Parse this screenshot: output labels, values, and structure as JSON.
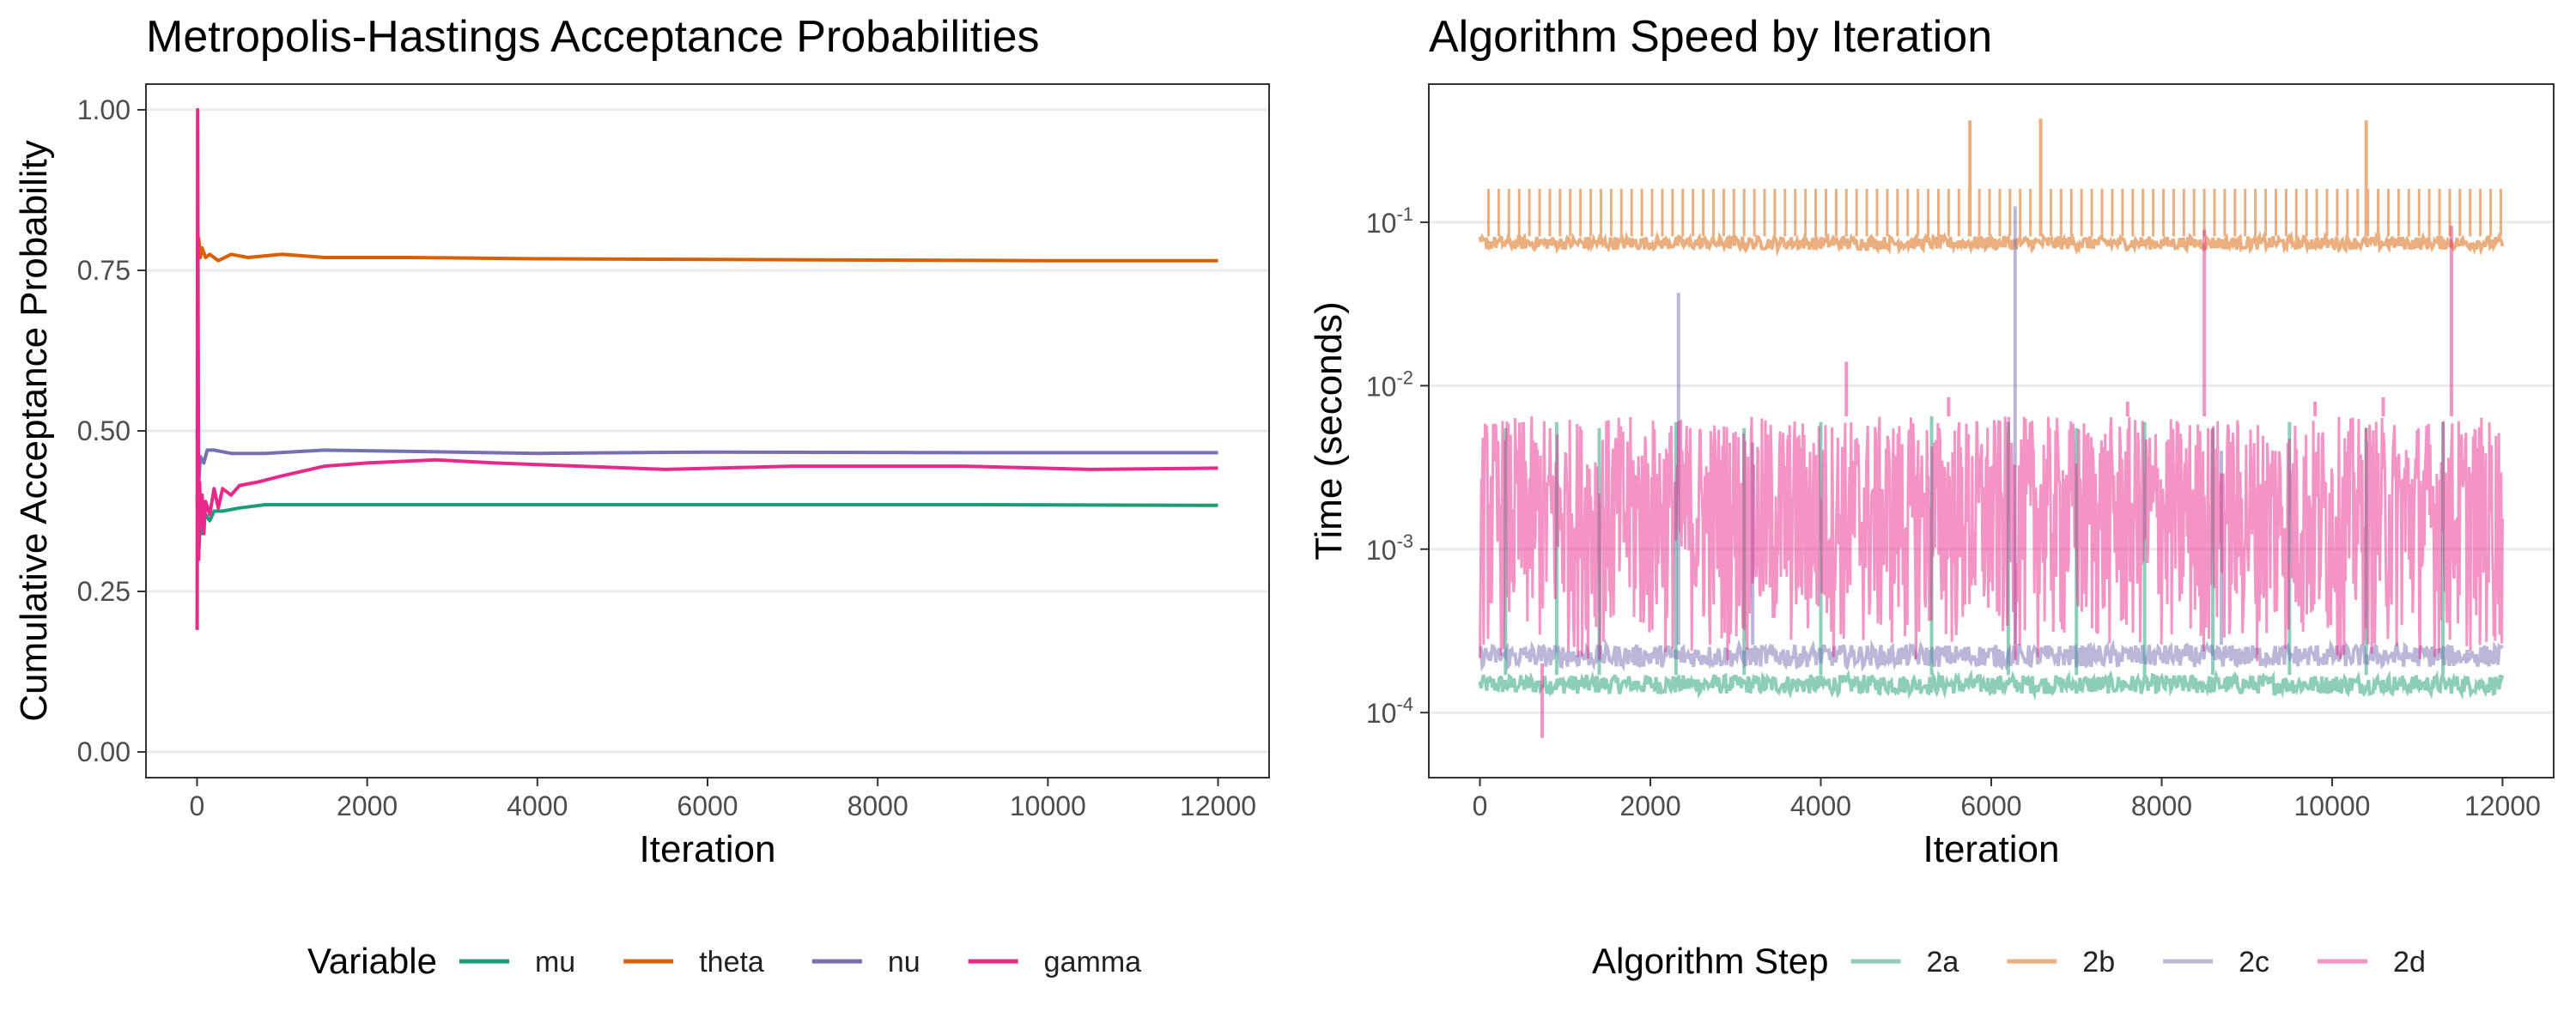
{
  "chart_data": [
    {
      "type": "line",
      "title": "Metropolis-Hastings Acceptance Probabilities",
      "xlabel": "Iteration",
      "ylabel": "Cumulative Acceptance Probability",
      "xlim": [
        -600,
        12600
      ],
      "ylim": [
        -0.04,
        1.04
      ],
      "x_ticks": [
        0,
        2000,
        4000,
        6000,
        8000,
        10000,
        12000
      ],
      "x_tick_labels": [
        "0",
        "2000",
        "4000",
        "6000",
        "8000",
        "10000",
        "12000"
      ],
      "y_ticks": [
        0.0,
        0.25,
        0.5,
        0.75,
        1.0
      ],
      "y_tick_labels": [
        "0.00",
        "0.25",
        "0.50",
        "0.75",
        "1.00"
      ],
      "grid": true,
      "legend_title": "Variable",
      "legend_position": "bottom",
      "series": [
        {
          "name": "mu",
          "color": "#1b9e77",
          "points": [
            [
              1,
              0.4
            ],
            [
              20,
              0.31
            ],
            [
              40,
              0.36
            ],
            [
              60,
              0.34
            ],
            [
              100,
              0.37
            ],
            [
              150,
              0.36
            ],
            [
              200,
              0.375
            ],
            [
              300,
              0.375
            ],
            [
              500,
              0.38
            ],
            [
              800,
              0.385
            ],
            [
              1500,
              0.385
            ],
            [
              3000,
              0.385
            ],
            [
              6000,
              0.385
            ],
            [
              9000,
              0.385
            ],
            [
              12000,
              0.384
            ]
          ]
        },
        {
          "name": "theta",
          "color": "#d95f02",
          "points": [
            [
              1,
              0.79
            ],
            [
              20,
              0.8
            ],
            [
              40,
              0.77
            ],
            [
              60,
              0.785
            ],
            [
              100,
              0.77
            ],
            [
              150,
              0.775
            ],
            [
              250,
              0.765
            ],
            [
              400,
              0.775
            ],
            [
              600,
              0.77
            ],
            [
              1000,
              0.775
            ],
            [
              1500,
              0.77
            ],
            [
              2500,
              0.77
            ],
            [
              4000,
              0.768
            ],
            [
              6000,
              0.767
            ],
            [
              8000,
              0.766
            ],
            [
              10000,
              0.765
            ],
            [
              12000,
              0.765
            ]
          ]
        },
        {
          "name": "nu",
          "color": "#7570b3",
          "points": [
            [
              1,
              0.5
            ],
            [
              20,
              0.42
            ],
            [
              40,
              0.46
            ],
            [
              80,
              0.45
            ],
            [
              120,
              0.47
            ],
            [
              200,
              0.47
            ],
            [
              400,
              0.465
            ],
            [
              800,
              0.465
            ],
            [
              1500,
              0.47
            ],
            [
              2500,
              0.468
            ],
            [
              4000,
              0.465
            ],
            [
              6000,
              0.467
            ],
            [
              9000,
              0.466
            ],
            [
              12000,
              0.466
            ]
          ]
        },
        {
          "name": "gamma",
          "color": "#e7298a",
          "points": [
            [
              1,
              0.19
            ],
            [
              8,
              1.0
            ],
            [
              14,
              0.65
            ],
            [
              20,
              0.3
            ],
            [
              30,
              0.42
            ],
            [
              45,
              0.35
            ],
            [
              60,
              0.4
            ],
            [
              80,
              0.34
            ],
            [
              100,
              0.39
            ],
            [
              150,
              0.37
            ],
            [
              200,
              0.41
            ],
            [
              250,
              0.38
            ],
            [
              300,
              0.41
            ],
            [
              400,
              0.4
            ],
            [
              500,
              0.415
            ],
            [
              700,
              0.42
            ],
            [
              1000,
              0.43
            ],
            [
              1500,
              0.445
            ],
            [
              2000,
              0.45
            ],
            [
              2800,
              0.455
            ],
            [
              3500,
              0.45
            ],
            [
              4500,
              0.445
            ],
            [
              5500,
              0.44
            ],
            [
              7000,
              0.445
            ],
            [
              9000,
              0.445
            ],
            [
              10500,
              0.44
            ],
            [
              12000,
              0.442
            ]
          ]
        }
      ]
    },
    {
      "type": "line",
      "title": "Algorithm Speed by Iteration",
      "xlabel": "Iteration",
      "ylabel": "Time (seconds)",
      "y_scale": "log10",
      "xlim": [
        -600,
        12600
      ],
      "ylim": [
        4e-05,
        0.7
      ],
      "x_ticks": [
        0,
        2000,
        4000,
        6000,
        8000,
        10000,
        12000
      ],
      "x_tick_labels": [
        "0",
        "2000",
        "4000",
        "6000",
        "8000",
        "10000",
        "12000"
      ],
      "y_ticks": [
        0.0001,
        0.001,
        0.01,
        0.1
      ],
      "y_tick_bases": [
        "10",
        "10",
        "10",
        "10"
      ],
      "y_tick_exponents": [
        "-4",
        "-3",
        "-2",
        "-1"
      ],
      "grid": true,
      "legend_title": "Algorithm Step",
      "legend_position": "bottom",
      "series": [
        {
          "name": "2a",
          "color": "#1b9e77",
          "opacity": 0.5,
          "band": [
            0.00013,
            0.00017
          ],
          "spikes": [
            [
              300,
              0.0055
            ],
            [
              900,
              0.006
            ],
            [
              1400,
              0.0055
            ],
            [
              2300,
              0.006
            ],
            [
              3100,
              0.0055
            ],
            [
              4000,
              0.006
            ],
            [
              5300,
              0.0065
            ],
            [
              6200,
              0.006
            ],
            [
              7000,
              0.0055
            ],
            [
              7800,
              0.006
            ],
            [
              8600,
              0.0055
            ],
            [
              9500,
              0.006
            ],
            [
              10400,
              0.0055
            ],
            [
              11300,
              0.006
            ]
          ]
        },
        {
          "name": "2b",
          "color": "#d95f02",
          "opacity": 0.5,
          "band": [
            0.068,
            0.082
          ],
          "spike_interval": 120,
          "spike_value": 0.16,
          "spikes": [
            [
              5750,
              0.42
            ],
            [
              6580,
              0.43
            ],
            [
              10400,
              0.42
            ]
          ]
        },
        {
          "name": "2c",
          "color": "#7570b3",
          "opacity": 0.5,
          "band": [
            0.00019,
            0.00026
          ],
          "spikes": [
            [
              2330,
              0.037
            ],
            [
              6280,
              0.125
            ],
            [
              3200,
              0.0045
            ],
            [
              8700,
              0.004
            ]
          ]
        },
        {
          "name": "2d",
          "color": "#e7298a",
          "opacity": 0.5,
          "band": [
            0.0002,
            0.0065
          ],
          "spikes": [
            [
              730,
              7e-05
            ],
            [
              4300,
              0.014
            ],
            [
              8500,
              0.09
            ],
            [
              11400,
              0.095
            ],
            [
              5500,
              0.0085
            ],
            [
              7600,
              0.008
            ],
            [
              9800,
              0.008
            ],
            [
              10600,
              0.0085
            ]
          ]
        }
      ]
    }
  ]
}
